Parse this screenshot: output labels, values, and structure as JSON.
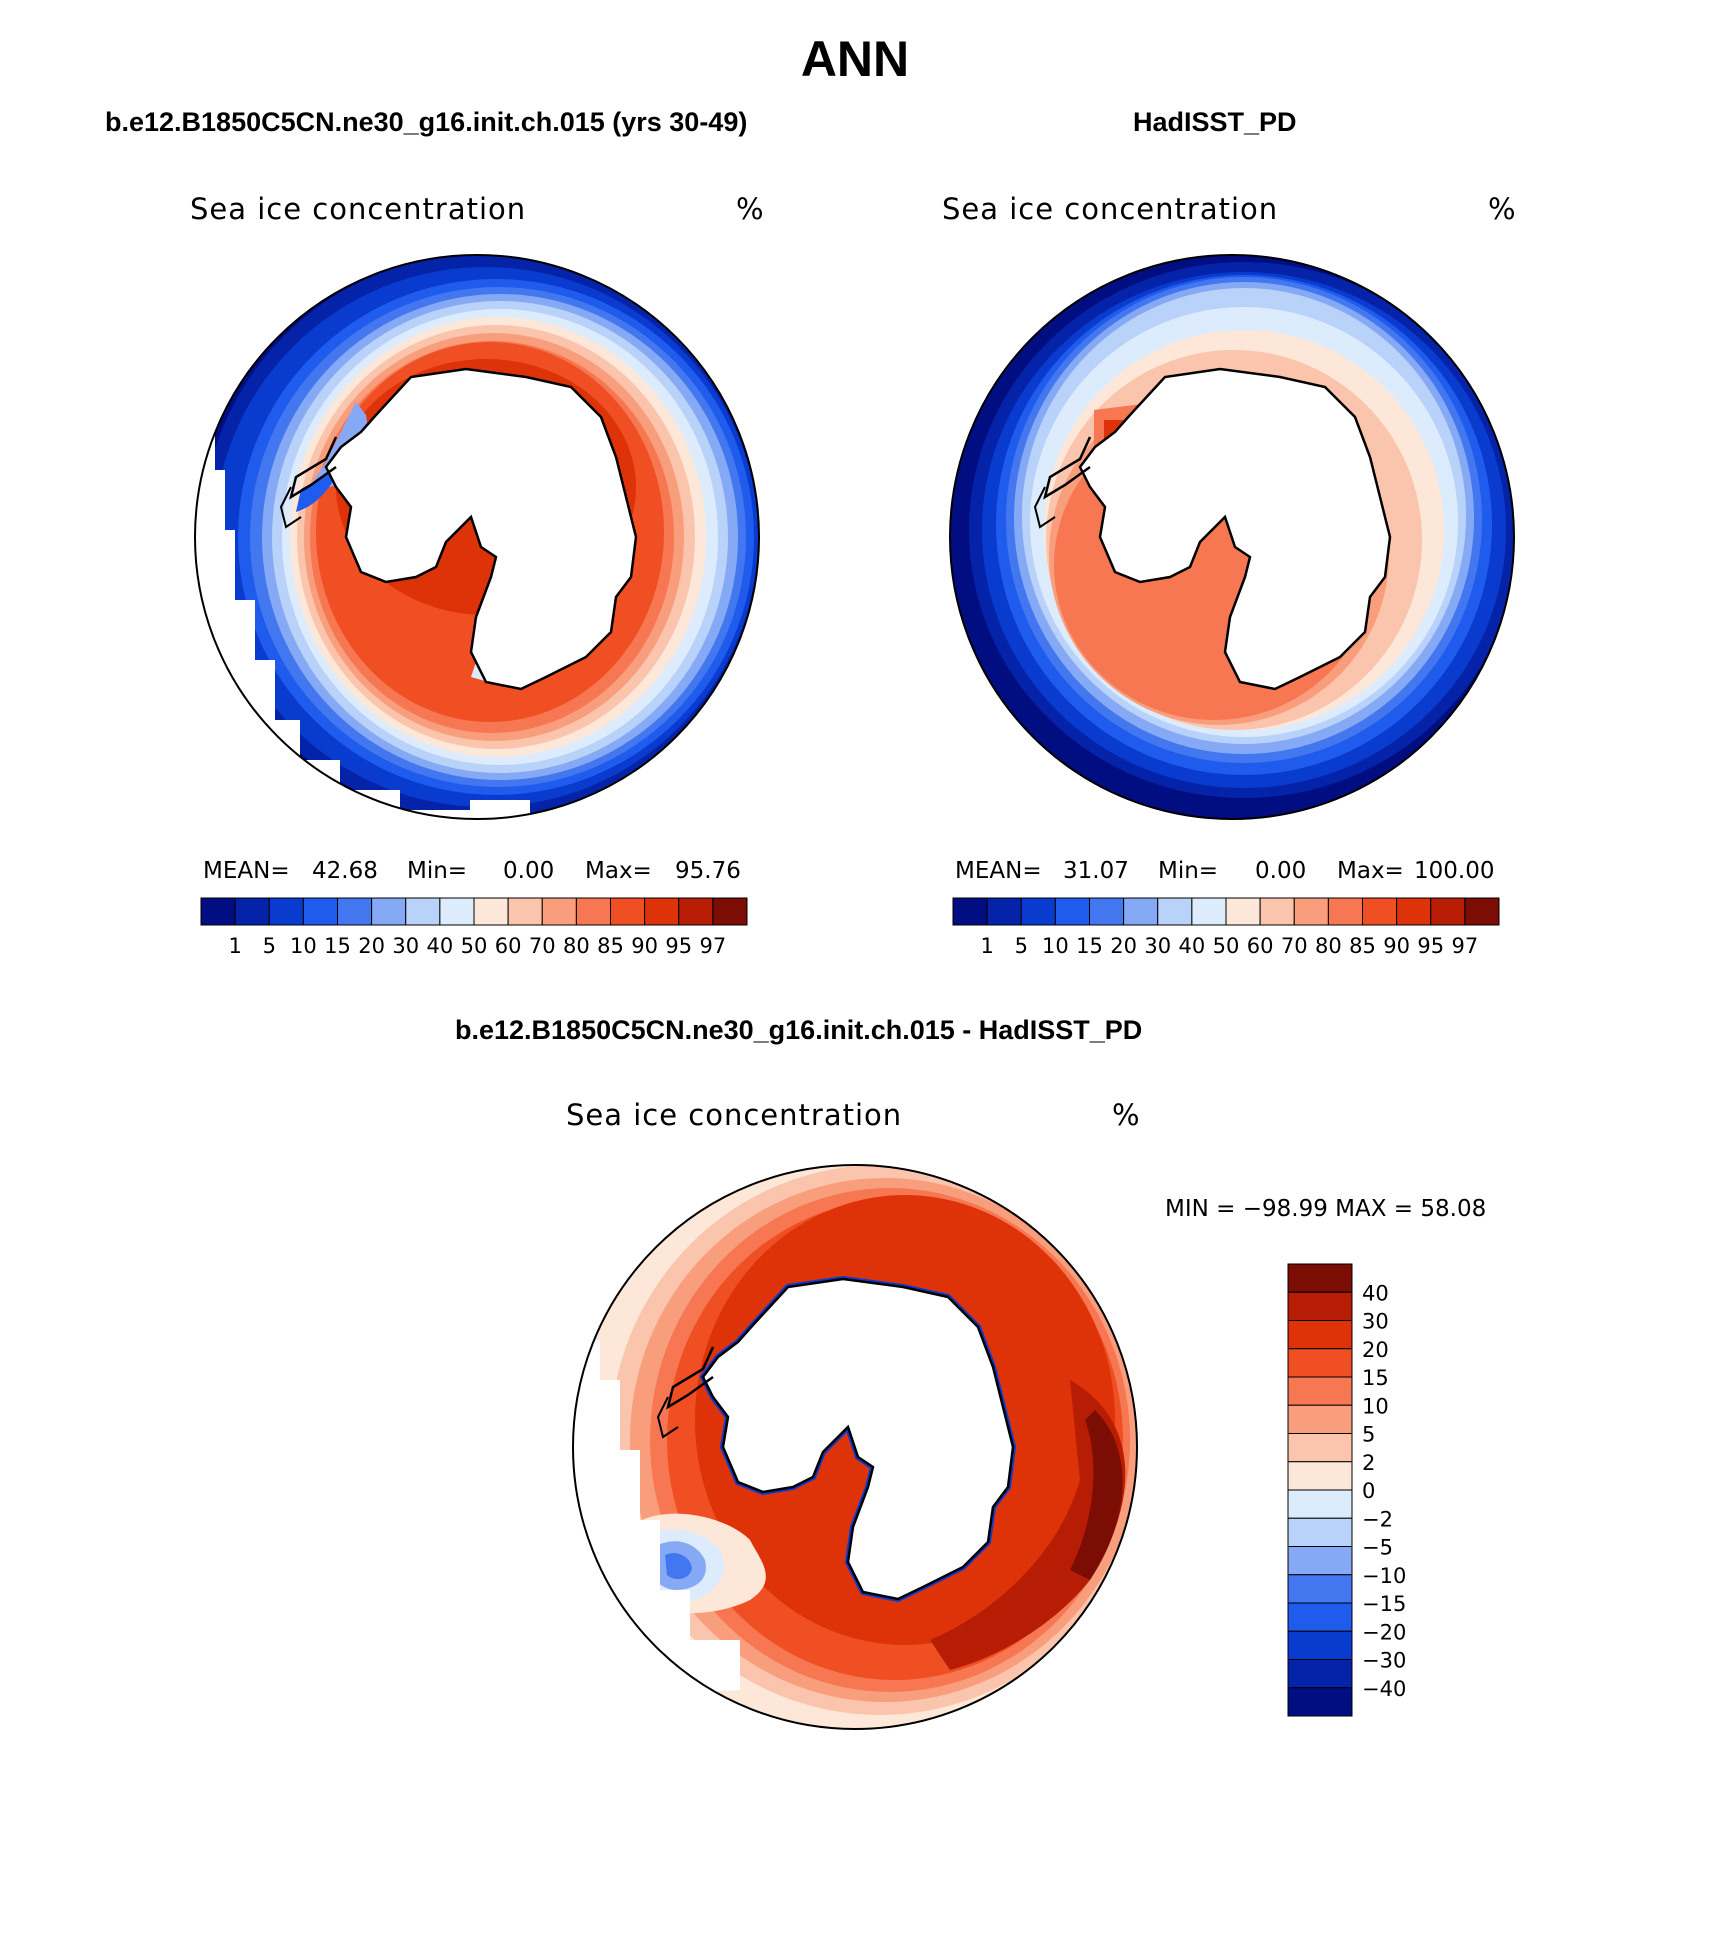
{
  "figure": {
    "title": "ANN"
  },
  "panels": {
    "model": {
      "title": "b.e12.B1850C5CN.ne30_g16.init.ch.015 (yrs 30-49)",
      "field": "Sea ice concentration",
      "units": "%",
      "stats": {
        "mean_label": "MEAN=",
        "mean": "42.68",
        "min_label": "Min=",
        "min": "0.00",
        "max_label": "Max=",
        "max": "95.76"
      }
    },
    "obs": {
      "title": "HadISST_PD",
      "field": "Sea ice concentration",
      "units": "%",
      "stats": {
        "mean_label": "MEAN=",
        "mean": "31.07",
        "min_label": "Min=",
        "min": "0.00",
        "max_label": "Max=",
        "max": "100.00"
      }
    },
    "diff": {
      "title": "b.e12.B1850C5CN.ne30_g16.init.ch.015 - HadISST_PD",
      "field": "Sea ice concentration",
      "units": "%",
      "minmax": "MIN = −98.99 MAX =   58.08"
    }
  },
  "colorbar_main": {
    "levels": [
      "1",
      "5",
      "10",
      "15",
      "20",
      "30",
      "40",
      "50",
      "60",
      "70",
      "80",
      "85",
      "90",
      "95",
      "97"
    ],
    "colors": [
      "#000e82",
      "#0523a8",
      "#0a3bcf",
      "#1f5bec",
      "#4277f0",
      "#86a9f5",
      "#b9d2fa",
      "#ddecfd",
      "#fde7d8",
      "#fbc4ac",
      "#f89e7c",
      "#f67751",
      "#f04f24",
      "#de3208",
      "#b71d05",
      "#7c0d04"
    ]
  },
  "colorbar_diff": {
    "levels": [
      "40",
      "30",
      "20",
      "15",
      "10",
      "5",
      "2",
      "0",
      "−2",
      "−5",
      "−10",
      "−15",
      "−20",
      "−30",
      "−40"
    ],
    "colors": [
      "#7c0d04",
      "#b71d05",
      "#de3208",
      "#f04f24",
      "#f67751",
      "#f89e7c",
      "#fbc4ac",
      "#fde7d8",
      "#ddecfd",
      "#b9d2fa",
      "#86a9f5",
      "#4277f0",
      "#1f5bec",
      "#0a3bcf",
      "#0523a8",
      "#000e82"
    ]
  }
}
